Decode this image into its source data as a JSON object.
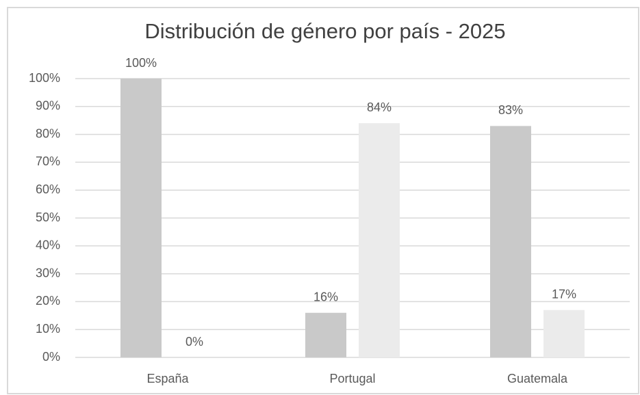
{
  "chart_data": {
    "type": "bar",
    "title": "Distribución de género por país - 2025",
    "categories": [
      "España",
      "Portugal",
      "Guatemala"
    ],
    "series": [
      {
        "color": "#c9c9c9",
        "values": [
          100,
          16,
          83
        ],
        "value_labels": [
          "100%",
          "16%",
          "83%"
        ]
      },
      {
        "color": "#ebebeb",
        "values": [
          0,
          84,
          17
        ],
        "value_labels": [
          "0%",
          "84%",
          "17%"
        ]
      }
    ],
    "ylim": [
      0,
      100
    ],
    "yticks": [
      {
        "value": 0,
        "label": "0%"
      },
      {
        "value": 10,
        "label": "10%"
      },
      {
        "value": 20,
        "label": "20%"
      },
      {
        "value": 30,
        "label": "30%"
      },
      {
        "value": 40,
        "label": "40%"
      },
      {
        "value": 50,
        "label": "50%"
      },
      {
        "value": 60,
        "label": "60%"
      },
      {
        "value": 70,
        "label": "70%"
      },
      {
        "value": 80,
        "label": "80%"
      },
      {
        "value": 90,
        "label": "90%"
      },
      {
        "value": 100,
        "label": "100%"
      }
    ],
    "grid": true
  }
}
